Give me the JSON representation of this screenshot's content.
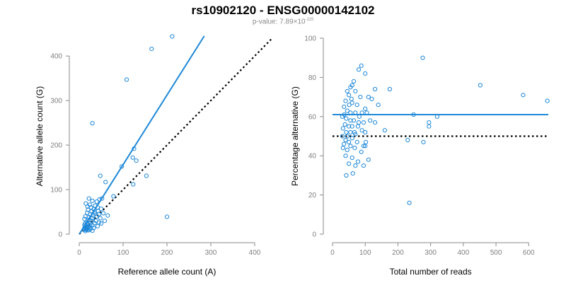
{
  "title": "rs10902120 - ENSG00000142102",
  "subtitle": {
    "prefix": "p-value: 7.89×10",
    "exponent": "-115"
  },
  "colors": {
    "points": "#1e88d8",
    "fit": "#1e88d8",
    "reference": "#000000",
    "axis": "#8a8a8a"
  },
  "chart_data": [
    {
      "type": "scatter",
      "xlabel": "Reference allele count (A)",
      "ylabel": "Alternative allele count (G)",
      "xlim": [
        0,
        400
      ],
      "ylim": [
        0,
        440
      ],
      "xticks": [
        0,
        100,
        200,
        300,
        400
      ],
      "yticks": [
        0,
        100,
        200,
        300,
        400
      ],
      "grid": false,
      "fit_line": {
        "x": [
          0,
          285
        ],
        "y": [
          0,
          445
        ]
      },
      "reference_line": {
        "x": [
          0,
          440
        ],
        "y": [
          0,
          440
        ]
      },
      "points": [
        [
          212,
          444
        ],
        [
          165,
          416
        ],
        [
          108,
          347
        ],
        [
          30,
          249
        ],
        [
          200,
          39
        ],
        [
          125,
          192
        ],
        [
          122,
          172
        ],
        [
          130,
          165
        ],
        [
          97,
          152
        ],
        [
          153,
          131
        ],
        [
          123,
          112
        ],
        [
          78,
          85
        ],
        [
          48,
          131
        ],
        [
          60,
          117
        ],
        [
          52,
          80
        ],
        [
          46,
          78
        ],
        [
          22,
          80
        ],
        [
          30,
          75
        ],
        [
          40,
          73
        ],
        [
          15,
          69
        ],
        [
          24,
          66
        ],
        [
          36,
          64
        ],
        [
          42,
          60
        ],
        [
          50,
          57
        ],
        [
          20,
          55
        ],
        [
          28,
          52
        ],
        [
          35,
          50
        ],
        [
          55,
          47
        ],
        [
          45,
          45
        ],
        [
          18,
          48
        ],
        [
          25,
          44
        ],
        [
          32,
          42
        ],
        [
          40,
          40
        ],
        [
          14,
          40
        ],
        [
          22,
          38
        ],
        [
          30,
          36
        ],
        [
          48,
          36
        ],
        [
          65,
          42
        ],
        [
          12,
          34
        ],
        [
          20,
          32
        ],
        [
          28,
          30
        ],
        [
          38,
          30
        ],
        [
          17,
          28
        ],
        [
          26,
          26
        ],
        [
          35,
          25
        ],
        [
          50,
          24
        ],
        [
          13,
          24
        ],
        [
          20,
          22
        ],
        [
          30,
          20
        ],
        [
          42,
          18
        ],
        [
          15,
          18
        ],
        [
          22,
          16
        ],
        [
          33,
          14
        ],
        [
          14,
          14
        ],
        [
          18,
          12
        ],
        [
          26,
          12
        ],
        [
          12,
          10
        ],
        [
          16,
          10
        ],
        [
          22,
          9
        ],
        [
          30,
          8
        ],
        [
          14,
          7
        ],
        [
          20,
          18
        ],
        [
          45,
          26
        ],
        [
          58,
          30
        ],
        [
          36,
          46
        ],
        [
          43,
          52
        ],
        [
          27,
          60
        ],
        [
          19,
          62
        ],
        [
          33,
          56
        ],
        [
          12,
          20
        ],
        [
          17,
          15
        ],
        [
          25,
          20
        ],
        [
          11,
          12
        ],
        [
          15,
          11
        ],
        [
          13,
          16
        ],
        [
          19,
          9
        ],
        [
          24,
          14
        ]
      ]
    },
    {
      "type": "scatter",
      "xlabel": "Total number of reads",
      "ylabel": "Percentage alternative (G)",
      "xlim": [
        0,
        660
      ],
      "ylim": [
        0,
        100
      ],
      "xticks": [
        0,
        100,
        200,
        300,
        400,
        500,
        600
      ],
      "yticks": [
        0,
        20,
        40,
        60,
        80,
        100
      ],
      "grid": false,
      "fit_line": {
        "x": [
          0,
          660
        ],
        "y": [
          61,
          61
        ]
      },
      "reference_line": {
        "x": [
          0,
          660
        ],
        "y": [
          50,
          50
        ]
      },
      "points": [
        [
          276,
          90
        ],
        [
          452,
          76
        ],
        [
          583,
          71
        ],
        [
          657,
          68
        ],
        [
          235,
          16
        ],
        [
          88,
          86
        ],
        [
          80,
          84
        ],
        [
          100,
          82
        ],
        [
          65,
          78
        ],
        [
          60,
          76
        ],
        [
          55,
          75
        ],
        [
          70,
          73
        ],
        [
          130,
          74
        ],
        [
          175,
          74
        ],
        [
          45,
          73
        ],
        [
          50,
          71
        ],
        [
          85,
          70
        ],
        [
          110,
          70
        ],
        [
          120,
          69
        ],
        [
          40,
          68
        ],
        [
          60,
          67
        ],
        [
          75,
          66
        ],
        [
          140,
          66
        ],
        [
          100,
          64
        ],
        [
          35,
          65
        ],
        [
          45,
          63
        ],
        [
          55,
          62
        ],
        [
          70,
          62
        ],
        [
          90,
          62
        ],
        [
          105,
          62
        ],
        [
          320,
          60
        ],
        [
          248,
          61
        ],
        [
          30,
          60
        ],
        [
          42,
          59
        ],
        [
          55,
          58
        ],
        [
          65,
          58
        ],
        [
          80,
          57
        ],
        [
          95,
          57
        ],
        [
          115,
          58
        ],
        [
          130,
          57
        ],
        [
          295,
          57
        ],
        [
          38,
          56
        ],
        [
          50,
          55
        ],
        [
          60,
          55
        ],
        [
          78,
          55
        ],
        [
          90,
          53
        ],
        [
          160,
          53
        ],
        [
          295,
          55
        ],
        [
          32,
          54
        ],
        [
          42,
          52
        ],
        [
          55,
          52
        ],
        [
          70,
          51
        ],
        [
          100,
          52
        ],
        [
          30,
          50
        ],
        [
          45,
          50
        ],
        [
          60,
          49
        ],
        [
          40,
          48
        ],
        [
          50,
          47
        ],
        [
          75,
          47
        ],
        [
          230,
          48
        ],
        [
          278,
          47
        ],
        [
          35,
          46
        ],
        [
          55,
          45
        ],
        [
          100,
          45
        ],
        [
          68,
          44
        ],
        [
          32,
          44
        ],
        [
          45,
          43
        ],
        [
          88,
          42
        ],
        [
          40,
          40
        ],
        [
          60,
          39
        ],
        [
          110,
          38
        ],
        [
          78,
          37
        ],
        [
          50,
          36
        ],
        [
          70,
          35
        ],
        [
          95,
          35
        ],
        [
          42,
          30
        ],
        [
          62,
          31
        ],
        [
          95,
          45
        ],
        [
          102,
          47
        ],
        [
          67,
          52
        ],
        [
          82,
          60
        ],
        [
          51,
          66
        ],
        [
          36,
          61
        ],
        [
          58,
          69
        ]
      ]
    }
  ]
}
